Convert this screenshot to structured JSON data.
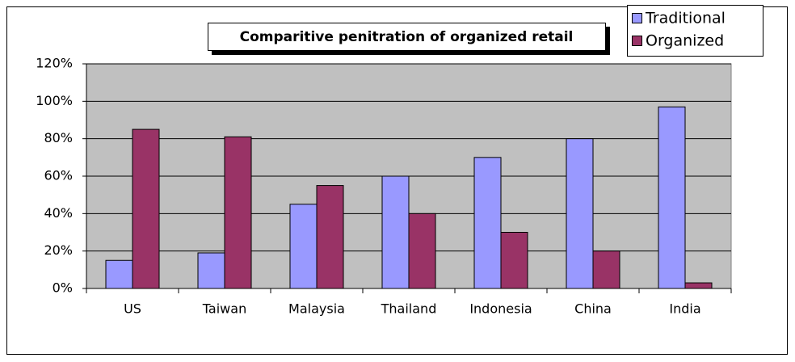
{
  "chart_data": {
    "type": "bar",
    "title": "Comparitive penitration of organized retail",
    "categories": [
      "US",
      "Taiwan",
      "Malaysia",
      "Thailand",
      "Indonesia",
      "China",
      "India"
    ],
    "series": [
      {
        "name": "Traditional",
        "color": "#9999ff",
        "values": [
          15,
          19,
          45,
          60,
          70,
          80,
          97
        ]
      },
      {
        "name": "Organized",
        "color": "#993366",
        "values": [
          85,
          81,
          55,
          40,
          30,
          20,
          3
        ]
      }
    ],
    "ylim": [
      0,
      120
    ],
    "yticks": [
      {
        "value": 0,
        "label": "0%"
      },
      {
        "value": 20,
        "label": "20%"
      },
      {
        "value": 40,
        "label": "40%"
      },
      {
        "value": 60,
        "label": "60%"
      },
      {
        "value": 80,
        "label": "80%"
      },
      {
        "value": 100,
        "label": "100%"
      },
      {
        "value": 120,
        "label": "120%"
      }
    ],
    "grid": true
  }
}
